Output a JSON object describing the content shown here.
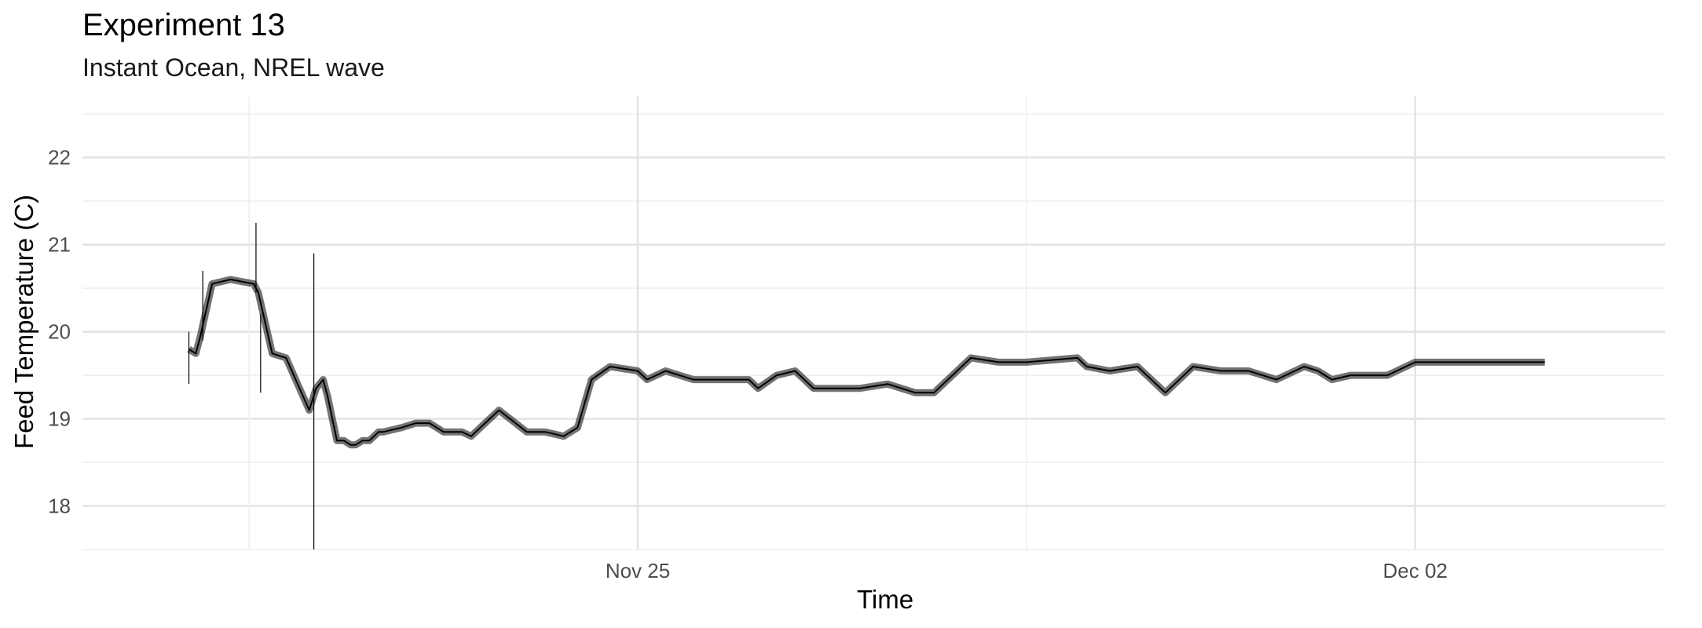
{
  "chart_data": {
    "type": "line",
    "title": "Experiment 13",
    "subtitle": "Instant Ocean, NREL wave",
    "xlabel": "Time",
    "ylabel": "Feed Temperature (C)",
    "x_tick_labels": [
      "Nov 25",
      "Dec 02"
    ],
    "y_ticks": [
      18,
      19,
      20,
      21,
      22
    ],
    "xlim": [
      "2021-11-20 00:00",
      "2021-12-04 06:00"
    ],
    "ylim": [
      17.5,
      22.7
    ],
    "grid": true,
    "line_color": "#000000",
    "series": [
      {
        "x": [
          "2021-11-20 23:00",
          "2021-11-21 00:30",
          "2021-11-21 01:30",
          "2021-11-21 04:00",
          "2021-11-21 08:00",
          "2021-11-21 13:00",
          "2021-11-21 14:00",
          "2021-11-21 17:00",
          "2021-11-21 20:00",
          "2021-11-22 01:00",
          "2021-11-22 02:30",
          "2021-11-22 04:00",
          "2021-11-22 05:00",
          "2021-11-22 07:00",
          "2021-11-22 08:30",
          "2021-11-22 10:00",
          "2021-11-22 11:00",
          "2021-11-22 12:30",
          "2021-11-22 14:00",
          "2021-11-22 16:00",
          "2021-11-22 17:00",
          "2021-11-22 21:00",
          "2021-11-23 00:00",
          "2021-11-23 03:00",
          "2021-11-23 06:00",
          "2021-11-23 10:00",
          "2021-11-23 12:00",
          "2021-11-23 18:00",
          "2021-11-24 00:00",
          "2021-11-24 04:00",
          "2021-11-24 08:00",
          "2021-11-24 11:00",
          "2021-11-24 14:00",
          "2021-11-24 18:00",
          "2021-11-25 00:00",
          "2021-11-25 02:00",
          "2021-11-25 06:00",
          "2021-11-25 12:00",
          "2021-11-26 00:00",
          "2021-11-26 02:00",
          "2021-11-26 06:00",
          "2021-11-26 10:00",
          "2021-11-26 14:00",
          "2021-11-26 20:00",
          "2021-11-27 00:00",
          "2021-11-27 06:00",
          "2021-11-27 12:00",
          "2021-11-27 16:00",
          "2021-11-28 00:00",
          "2021-11-28 06:00",
          "2021-11-28 12:00",
          "2021-11-28 23:00",
          "2021-11-29 01:00",
          "2021-11-29 06:00",
          "2021-11-29 12:00",
          "2021-11-29 18:00",
          "2021-11-30 00:00",
          "2021-11-30 06:00",
          "2021-11-30 12:00",
          "2021-11-30 18:00",
          "2021-12-01 00:00",
          "2021-12-01 03:00",
          "2021-12-01 06:00",
          "2021-12-01 10:00",
          "2021-12-01 12:00",
          "2021-12-01 18:00",
          "2021-12-02 00:00",
          "2021-12-02 06:00",
          "2021-12-02 12:00",
          "2021-12-02 18:00",
          "2021-12-03 00:00",
          "2021-12-03 04:00"
        ],
        "y": [
          19.8,
          19.75,
          19.95,
          20.55,
          20.6,
          20.55,
          20.45,
          19.75,
          19.7,
          19.1,
          19.35,
          19.45,
          19.25,
          18.75,
          18.75,
          18.7,
          18.7,
          18.75,
          18.75,
          18.85,
          18.85,
          18.9,
          18.95,
          18.95,
          18.85,
          18.85,
          18.8,
          19.1,
          18.85,
          18.85,
          18.8,
          18.9,
          19.45,
          19.6,
          19.55,
          19.45,
          19.55,
          19.45,
          19.45,
          19.35,
          19.5,
          19.55,
          19.35,
          19.35,
          19.35,
          19.4,
          19.3,
          19.3,
          19.7,
          19.65,
          19.65,
          19.7,
          19.6,
          19.55,
          19.6,
          19.3,
          19.6,
          19.55,
          19.55,
          19.45,
          19.6,
          19.55,
          19.45,
          19.5,
          19.5,
          19.5,
          19.65,
          19.65,
          19.65,
          19.65,
          19.65,
          19.65
        ]
      }
    ],
    "annotations": [
      {
        "x": "2021-11-21 13:30",
        "y_min": 20.45,
        "y_max": 21.25
      },
      {
        "x": "2021-11-21 14:30",
        "y_min": 19.3,
        "y_max": 20.2
      },
      {
        "x": "2021-11-22 02:00",
        "y_min": 17.5,
        "y_max": 20.9
      },
      {
        "x": "2021-11-20 23:00",
        "y_min": 19.4,
        "y_max": 20.0
      },
      {
        "x": "2021-11-21 02:00",
        "y_min": 19.9,
        "y_max": 20.7
      }
    ]
  }
}
